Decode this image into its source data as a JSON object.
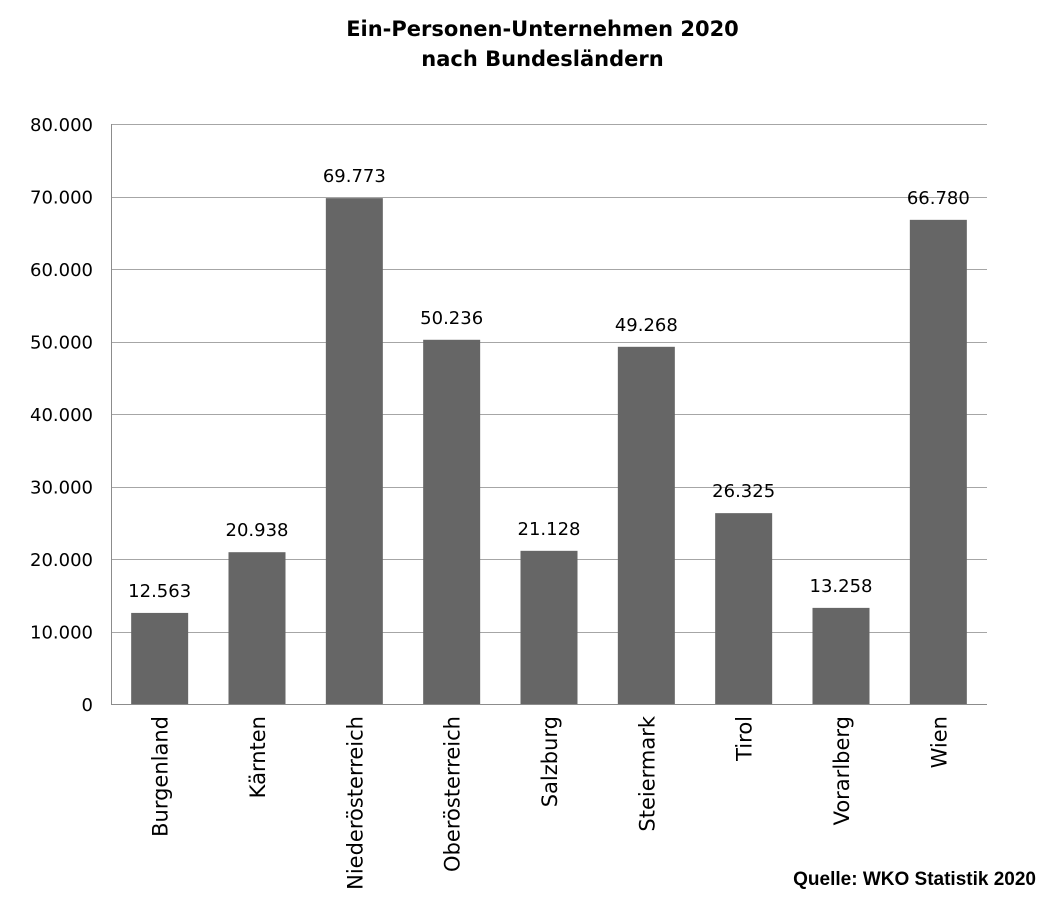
{
  "chart_data": {
    "type": "bar",
    "title_lines": [
      "Ein-Personen-Unternehmen 2020",
      "nach Bundesländern"
    ],
    "categories": [
      "Burgenland",
      "Kärnten",
      "Niederösterreich",
      "Oberösterreich",
      "Salzburg",
      "Steiermark",
      "Tirol",
      "Vorarlberg",
      "Wien"
    ],
    "values": [
      12563,
      20938,
      69773,
      50236,
      21128,
      49268,
      26325,
      13258,
      66780
    ],
    "data_labels": [
      "12.563",
      "20.938",
      "69.773",
      "50.236",
      "21.128",
      "49.268",
      "26.325",
      "13.258",
      "66.780"
    ],
    "ylim": [
      0,
      80000
    ],
    "yticks": [
      0,
      10000,
      20000,
      30000,
      40000,
      50000,
      60000,
      70000,
      80000
    ],
    "ytick_labels": [
      "0",
      "10.000",
      "20.000",
      "30.000",
      "40.000",
      "50.000",
      "60.000",
      "70.000",
      "80.000"
    ],
    "grid": true,
    "legend": "none",
    "bar_color": "#666666",
    "grid_color": "#a6a6a6"
  },
  "source": "Quelle: WKO Statistik 2020"
}
